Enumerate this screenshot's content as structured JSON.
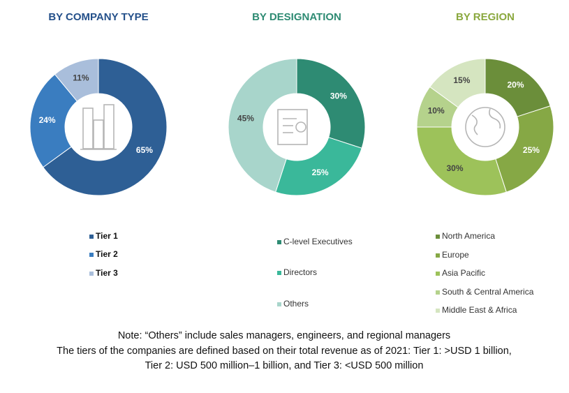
{
  "chart_data": [
    {
      "type": "pie",
      "title": "BY COMPANY TYPE",
      "categories": [
        "Tier 1",
        "Tier 2",
        "Tier 3"
      ],
      "values": [
        65,
        24,
        11
      ],
      "value_labels": [
        "65%",
        "24%",
        "11%"
      ],
      "colors": [
        "#2e5f95",
        "#3a7dc0",
        "#a9bedb"
      ]
    },
    {
      "type": "pie",
      "title": "BY DESIGNATION",
      "categories": [
        "C-level Executives",
        "Directors",
        "Others"
      ],
      "values": [
        30,
        25,
        45
      ],
      "value_labels": [
        "30%",
        "25%",
        "45%"
      ],
      "colors": [
        "#2e8b73",
        "#3ab89a",
        "#a8d5cb"
      ]
    },
    {
      "type": "pie",
      "title": "BY REGION",
      "categories": [
        "North America",
        "Europe",
        "Asia Pacific",
        "South & Central America",
        "Middle East & Africa"
      ],
      "values": [
        20,
        25,
        30,
        10,
        15
      ],
      "value_labels": [
        "20%",
        "25%",
        "30%",
        "10%",
        "15%"
      ],
      "colors": [
        "#6b8e3a",
        "#86a845",
        "#9dc25a",
        "#b5d28c",
        "#d5e5c0"
      ]
    }
  ],
  "notes": [
    "Note: “Others” include sales managers, engineers, and regional managers",
    "The tiers of the companies are defined based on their total revenue as of 2021: Tier 1: >USD 1 billion,",
    "Tier 2: USD 500 million–1 billion, and Tier 3: <USD 500 million"
  ]
}
